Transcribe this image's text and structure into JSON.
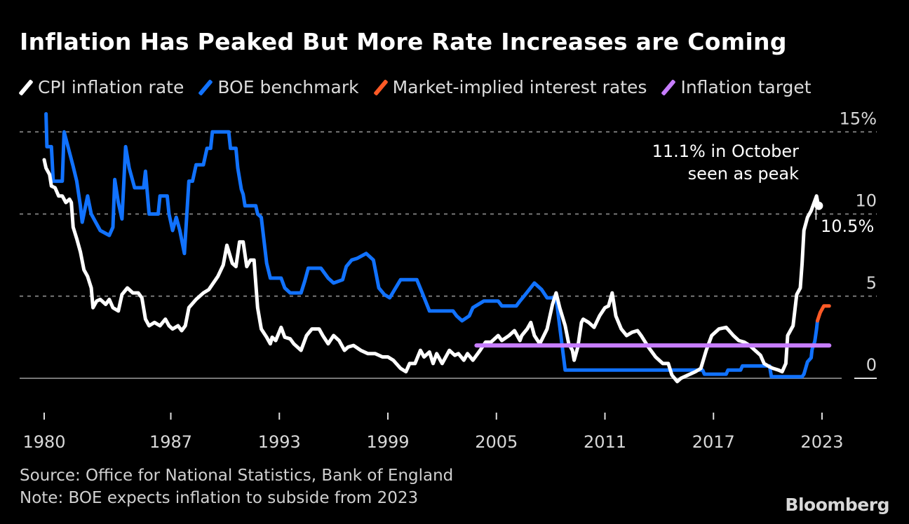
{
  "title": "Inflation Has Peaked But More Rate Increases are Coming",
  "source": "Source: Office for National Statistics, Bank of England",
  "note": "Note: BOE expects inflation to subside from 2023",
  "brand": "Bloomberg",
  "chart_data": {
    "type": "line",
    "title": "Inflation Has Peaked But More Rate Increases are Coming",
    "xlim": [
      1980,
      2024
    ],
    "ylim": [
      -1,
      16
    ],
    "x_ticks": [
      1980,
      1987,
      1993,
      1999,
      2005,
      2011,
      2017,
      2023
    ],
    "y_ticks": [
      0,
      5,
      10,
      15
    ],
    "y_tick_labels": [
      "0",
      "5",
      "10",
      "15%"
    ],
    "grid": "horizontal dashed",
    "legend_placement": "top",
    "annotations": [
      {
        "text_lines": [
          "11.1% in October",
          "seen as peak"
        ],
        "x": 2022.8,
        "y": 11.1
      },
      {
        "text": "10.5%",
        "x": 2022.9,
        "y": 10.5
      }
    ],
    "series": [
      {
        "name": "CPI inflation rate",
        "color": "#ffffff",
        "points": [
          [
            1980.0,
            13.3
          ],
          [
            1980.1,
            12.8
          ],
          [
            1980.3,
            12.4
          ],
          [
            1980.4,
            11.7
          ],
          [
            1980.6,
            11.6
          ],
          [
            1980.8,
            11.1
          ],
          [
            1981.0,
            11.1
          ],
          [
            1981.2,
            10.7
          ],
          [
            1981.4,
            10.9
          ],
          [
            1981.5,
            10.7
          ],
          [
            1981.6,
            9.2
          ],
          [
            1981.8,
            8.5
          ],
          [
            1982.0,
            7.7
          ],
          [
            1982.2,
            6.6
          ],
          [
            1982.4,
            6.2
          ],
          [
            1982.6,
            5.5
          ],
          [
            1982.7,
            4.3
          ],
          [
            1982.9,
            4.7
          ],
          [
            1983.1,
            4.8
          ],
          [
            1983.4,
            4.5
          ],
          [
            1983.6,
            4.8
          ],
          [
            1983.8,
            4.3
          ],
          [
            1984.1,
            4.1
          ],
          [
            1984.3,
            5.1
          ],
          [
            1984.6,
            5.5
          ],
          [
            1984.9,
            5.2
          ],
          [
            1985.2,
            5.2
          ],
          [
            1985.4,
            4.9
          ],
          [
            1985.6,
            3.6
          ],
          [
            1985.8,
            3.2
          ],
          [
            1986.1,
            3.4
          ],
          [
            1986.4,
            3.2
          ],
          [
            1986.7,
            3.6
          ],
          [
            1986.9,
            3.2
          ],
          [
            1987.1,
            3.0
          ],
          [
            1987.4,
            3.2
          ],
          [
            1987.6,
            2.9
          ],
          [
            1987.8,
            3.2
          ],
          [
            1988.0,
            4.3
          ],
          [
            1988.4,
            4.8
          ],
          [
            1988.8,
            5.2
          ],
          [
            1989.1,
            5.4
          ],
          [
            1989.6,
            6.2
          ],
          [
            1989.9,
            6.9
          ],
          [
            1990.1,
            8.1
          ],
          [
            1990.4,
            7.0
          ],
          [
            1990.6,
            6.8
          ],
          [
            1990.8,
            8.3
          ],
          [
            1991.0,
            8.3
          ],
          [
            1991.2,
            6.8
          ],
          [
            1991.4,
            7.2
          ],
          [
            1991.6,
            7.2
          ],
          [
            1991.8,
            4.3
          ],
          [
            1992.0,
            3.0
          ],
          [
            1992.3,
            2.5
          ],
          [
            1992.5,
            2.1
          ],
          [
            1992.6,
            2.5
          ],
          [
            1992.8,
            2.3
          ],
          [
            1993.1,
            3.1
          ],
          [
            1993.3,
            2.5
          ],
          [
            1993.6,
            2.4
          ],
          [
            1993.8,
            2.1
          ],
          [
            1994.2,
            1.7
          ],
          [
            1994.5,
            2.6
          ],
          [
            1994.8,
            3.0
          ],
          [
            1995.2,
            3.0
          ],
          [
            1995.4,
            2.6
          ],
          [
            1995.7,
            2.1
          ],
          [
            1996.0,
            2.6
          ],
          [
            1996.3,
            2.3
          ],
          [
            1996.6,
            1.7
          ],
          [
            1996.8,
            1.9
          ],
          [
            1997.1,
            2.0
          ],
          [
            1997.5,
            1.7
          ],
          [
            1997.9,
            1.5
          ],
          [
            1998.3,
            1.5
          ],
          [
            1998.7,
            1.3
          ],
          [
            1999.0,
            1.3
          ],
          [
            1999.3,
            1.1
          ],
          [
            1999.7,
            0.6
          ],
          [
            2000.0,
            0.4
          ],
          [
            2000.2,
            0.9
          ],
          [
            2000.5,
            0.9
          ],
          [
            2000.8,
            1.7
          ],
          [
            2001.0,
            1.3
          ],
          [
            2001.3,
            1.6
          ],
          [
            2001.5,
            0.9
          ],
          [
            2001.7,
            1.5
          ],
          [
            2002.0,
            0.9
          ],
          [
            2002.4,
            1.7
          ],
          [
            2002.7,
            1.4
          ],
          [
            2002.9,
            1.5
          ],
          [
            2003.2,
            1.1
          ],
          [
            2003.4,
            1.5
          ],
          [
            2003.7,
            1.1
          ],
          [
            2004.1,
            1.7
          ],
          [
            2004.4,
            2.2
          ],
          [
            2004.7,
            2.2
          ],
          [
            2005.1,
            2.6
          ],
          [
            2005.3,
            2.3
          ],
          [
            2005.7,
            2.6
          ],
          [
            2006.0,
            2.9
          ],
          [
            2006.3,
            2.3
          ],
          [
            2006.4,
            2.6
          ],
          [
            2006.7,
            3.0
          ],
          [
            2006.9,
            3.4
          ],
          [
            2007.1,
            2.6
          ],
          [
            2007.4,
            2.1
          ],
          [
            2007.8,
            3.0
          ],
          [
            2008.1,
            4.5
          ],
          [
            2008.3,
            5.2
          ],
          [
            2008.5,
            4.3
          ],
          [
            2008.8,
            3.2
          ],
          [
            2009.0,
            2.1
          ],
          [
            2009.2,
            1.7
          ],
          [
            2009.3,
            1.1
          ],
          [
            2009.5,
            1.9
          ],
          [
            2009.7,
            3.4
          ],
          [
            2009.8,
            3.6
          ],
          [
            2010.1,
            3.4
          ],
          [
            2010.4,
            3.1
          ],
          [
            2010.7,
            3.8
          ],
          [
            2011.0,
            4.3
          ],
          [
            2011.2,
            4.4
          ],
          [
            2011.4,
            5.2
          ],
          [
            2011.6,
            3.8
          ],
          [
            2011.9,
            3.0
          ],
          [
            2012.2,
            2.6
          ],
          [
            2012.5,
            2.8
          ],
          [
            2012.8,
            2.9
          ],
          [
            2013.0,
            2.6
          ],
          [
            2013.4,
            1.9
          ],
          [
            2013.8,
            1.3
          ],
          [
            2014.2,
            0.9
          ],
          [
            2014.5,
            0.9
          ],
          [
            2014.7,
            0.2
          ],
          [
            2015.0,
            -0.2
          ],
          [
            2015.2,
            0.0
          ],
          [
            2015.6,
            0.2
          ],
          [
            2016.0,
            0.4
          ],
          [
            2016.3,
            0.6
          ],
          [
            2016.6,
            1.7
          ],
          [
            2016.9,
            2.6
          ],
          [
            2017.3,
            3.0
          ],
          [
            2017.7,
            3.1
          ],
          [
            2018.1,
            2.6
          ],
          [
            2018.4,
            2.3
          ],
          [
            2018.7,
            2.2
          ],
          [
            2019.0,
            2.0
          ],
          [
            2019.3,
            1.7
          ],
          [
            2019.6,
            1.4
          ],
          [
            2019.8,
            0.9
          ],
          [
            2020.1,
            0.7
          ],
          [
            2020.3,
            0.6
          ],
          [
            2020.6,
            0.5
          ],
          [
            2020.8,
            0.4
          ],
          [
            2021.0,
            0.9
          ],
          [
            2021.1,
            2.6
          ],
          [
            2021.4,
            3.2
          ],
          [
            2021.6,
            5.1
          ],
          [
            2021.8,
            5.5
          ],
          [
            2021.9,
            7.0
          ],
          [
            2022.0,
            9.0
          ],
          [
            2022.2,
            9.8
          ],
          [
            2022.4,
            10.2
          ],
          [
            2022.7,
            11.1
          ],
          [
            2022.8,
            10.5
          ],
          [
            2022.9,
            10.5
          ]
        ]
      },
      {
        "name": "BOE benchmark",
        "color": "#1172ff",
        "points": [
          [
            1980.1,
            16.1
          ],
          [
            1980.15,
            14.1
          ],
          [
            1980.4,
            14.1
          ],
          [
            1980.5,
            12.0
          ],
          [
            1981.0,
            12.0
          ],
          [
            1981.1,
            15.0
          ],
          [
            1981.6,
            12.9
          ],
          [
            1981.8,
            12.0
          ],
          [
            1982.0,
            10.5
          ],
          [
            1982.1,
            9.5
          ],
          [
            1982.4,
            11.1
          ],
          [
            1982.6,
            10.0
          ],
          [
            1982.8,
            9.6
          ],
          [
            1983.1,
            9.0
          ],
          [
            1983.6,
            8.7
          ],
          [
            1983.8,
            9.2
          ],
          [
            1983.9,
            12.1
          ],
          [
            1984.1,
            10.7
          ],
          [
            1984.3,
            9.7
          ],
          [
            1984.5,
            14.1
          ],
          [
            1984.7,
            12.8
          ],
          [
            1985.0,
            11.6
          ],
          [
            1985.5,
            11.6
          ],
          [
            1985.6,
            12.6
          ],
          [
            1985.8,
            10.0
          ],
          [
            1986.3,
            10.0
          ],
          [
            1986.4,
            11.1
          ],
          [
            1986.8,
            11.1
          ],
          [
            1986.9,
            10.0
          ],
          [
            1987.1,
            9.0
          ],
          [
            1987.3,
            9.8
          ],
          [
            1987.5,
            9.0
          ],
          [
            1987.75,
            7.6
          ],
          [
            1988.0,
            12.0
          ],
          [
            1988.2,
            12.0
          ],
          [
            1988.4,
            13.0
          ],
          [
            1988.8,
            13.0
          ],
          [
            1989.0,
            14.0
          ],
          [
            1989.2,
            14.0
          ],
          [
            1989.3,
            15.0
          ],
          [
            1990.2,
            15.0
          ],
          [
            1990.3,
            14.0
          ],
          [
            1990.6,
            14.0
          ],
          [
            1990.7,
            12.8
          ],
          [
            1990.9,
            11.5
          ],
          [
            1991.0,
            11.2
          ],
          [
            1991.1,
            10.5
          ],
          [
            1991.7,
            10.5
          ],
          [
            1991.8,
            10.0
          ],
          [
            1992.0,
            9.8
          ],
          [
            1992.3,
            7.0
          ],
          [
            1992.5,
            6.1
          ],
          [
            1993.1,
            6.1
          ],
          [
            1993.3,
            5.5
          ],
          [
            1993.6,
            5.2
          ],
          [
            1994.2,
            5.2
          ],
          [
            1994.4,
            5.9
          ],
          [
            1994.6,
            6.7
          ],
          [
            1995.3,
            6.7
          ],
          [
            1995.7,
            6.1
          ],
          [
            1996.0,
            5.8
          ],
          [
            1996.5,
            6.0
          ],
          [
            1996.7,
            6.8
          ],
          [
            1997.0,
            7.2
          ],
          [
            1997.3,
            7.3
          ],
          [
            1997.8,
            7.6
          ],
          [
            1998.2,
            7.2
          ],
          [
            1998.5,
            5.5
          ],
          [
            1998.8,
            5.1
          ],
          [
            1999.1,
            4.9
          ],
          [
            1999.7,
            6.0
          ],
          [
            2000.6,
            6.0
          ],
          [
            2000.9,
            5.2
          ],
          [
            2001.3,
            4.1
          ],
          [
            2002.6,
            4.1
          ],
          [
            2002.8,
            3.8
          ],
          [
            2003.1,
            3.5
          ],
          [
            2003.5,
            3.8
          ],
          [
            2003.7,
            4.3
          ],
          [
            2004.3,
            4.7
          ],
          [
            2005.1,
            4.7
          ],
          [
            2005.3,
            4.4
          ],
          [
            2006.1,
            4.4
          ],
          [
            2006.3,
            4.7
          ],
          [
            2006.6,
            5.1
          ],
          [
            2007.1,
            5.8
          ],
          [
            2007.5,
            5.4
          ],
          [
            2007.8,
            4.9
          ],
          [
            2008.3,
            4.9
          ],
          [
            2008.8,
            0.5
          ],
          [
            2016.4,
            0.5
          ],
          [
            2016.5,
            0.25
          ],
          [
            2017.7,
            0.25
          ],
          [
            2017.8,
            0.5
          ],
          [
            2018.5,
            0.5
          ],
          [
            2018.6,
            0.75
          ],
          [
            2020.1,
            0.75
          ],
          [
            2020.2,
            0.1
          ],
          [
            2021.9,
            0.1
          ],
          [
            2022.0,
            0.25
          ],
          [
            2022.2,
            1.0
          ],
          [
            2022.4,
            1.25
          ],
          [
            2022.45,
            1.75
          ],
          [
            2022.6,
            2.25
          ],
          [
            2022.7,
            3.0
          ],
          [
            2022.75,
            3.5
          ]
        ]
      },
      {
        "name": "Market-implied interest rates",
        "color": "#ff5a26",
        "points": [
          [
            2022.75,
            3.5
          ],
          [
            2022.9,
            4.0
          ],
          [
            2023.1,
            4.4
          ],
          [
            2023.4,
            4.4
          ]
        ]
      },
      {
        "name": "Inflation target",
        "color": "#c77dff",
        "points": [
          [
            2003.9,
            2.0
          ],
          [
            2023.4,
            2.0
          ]
        ]
      }
    ]
  }
}
